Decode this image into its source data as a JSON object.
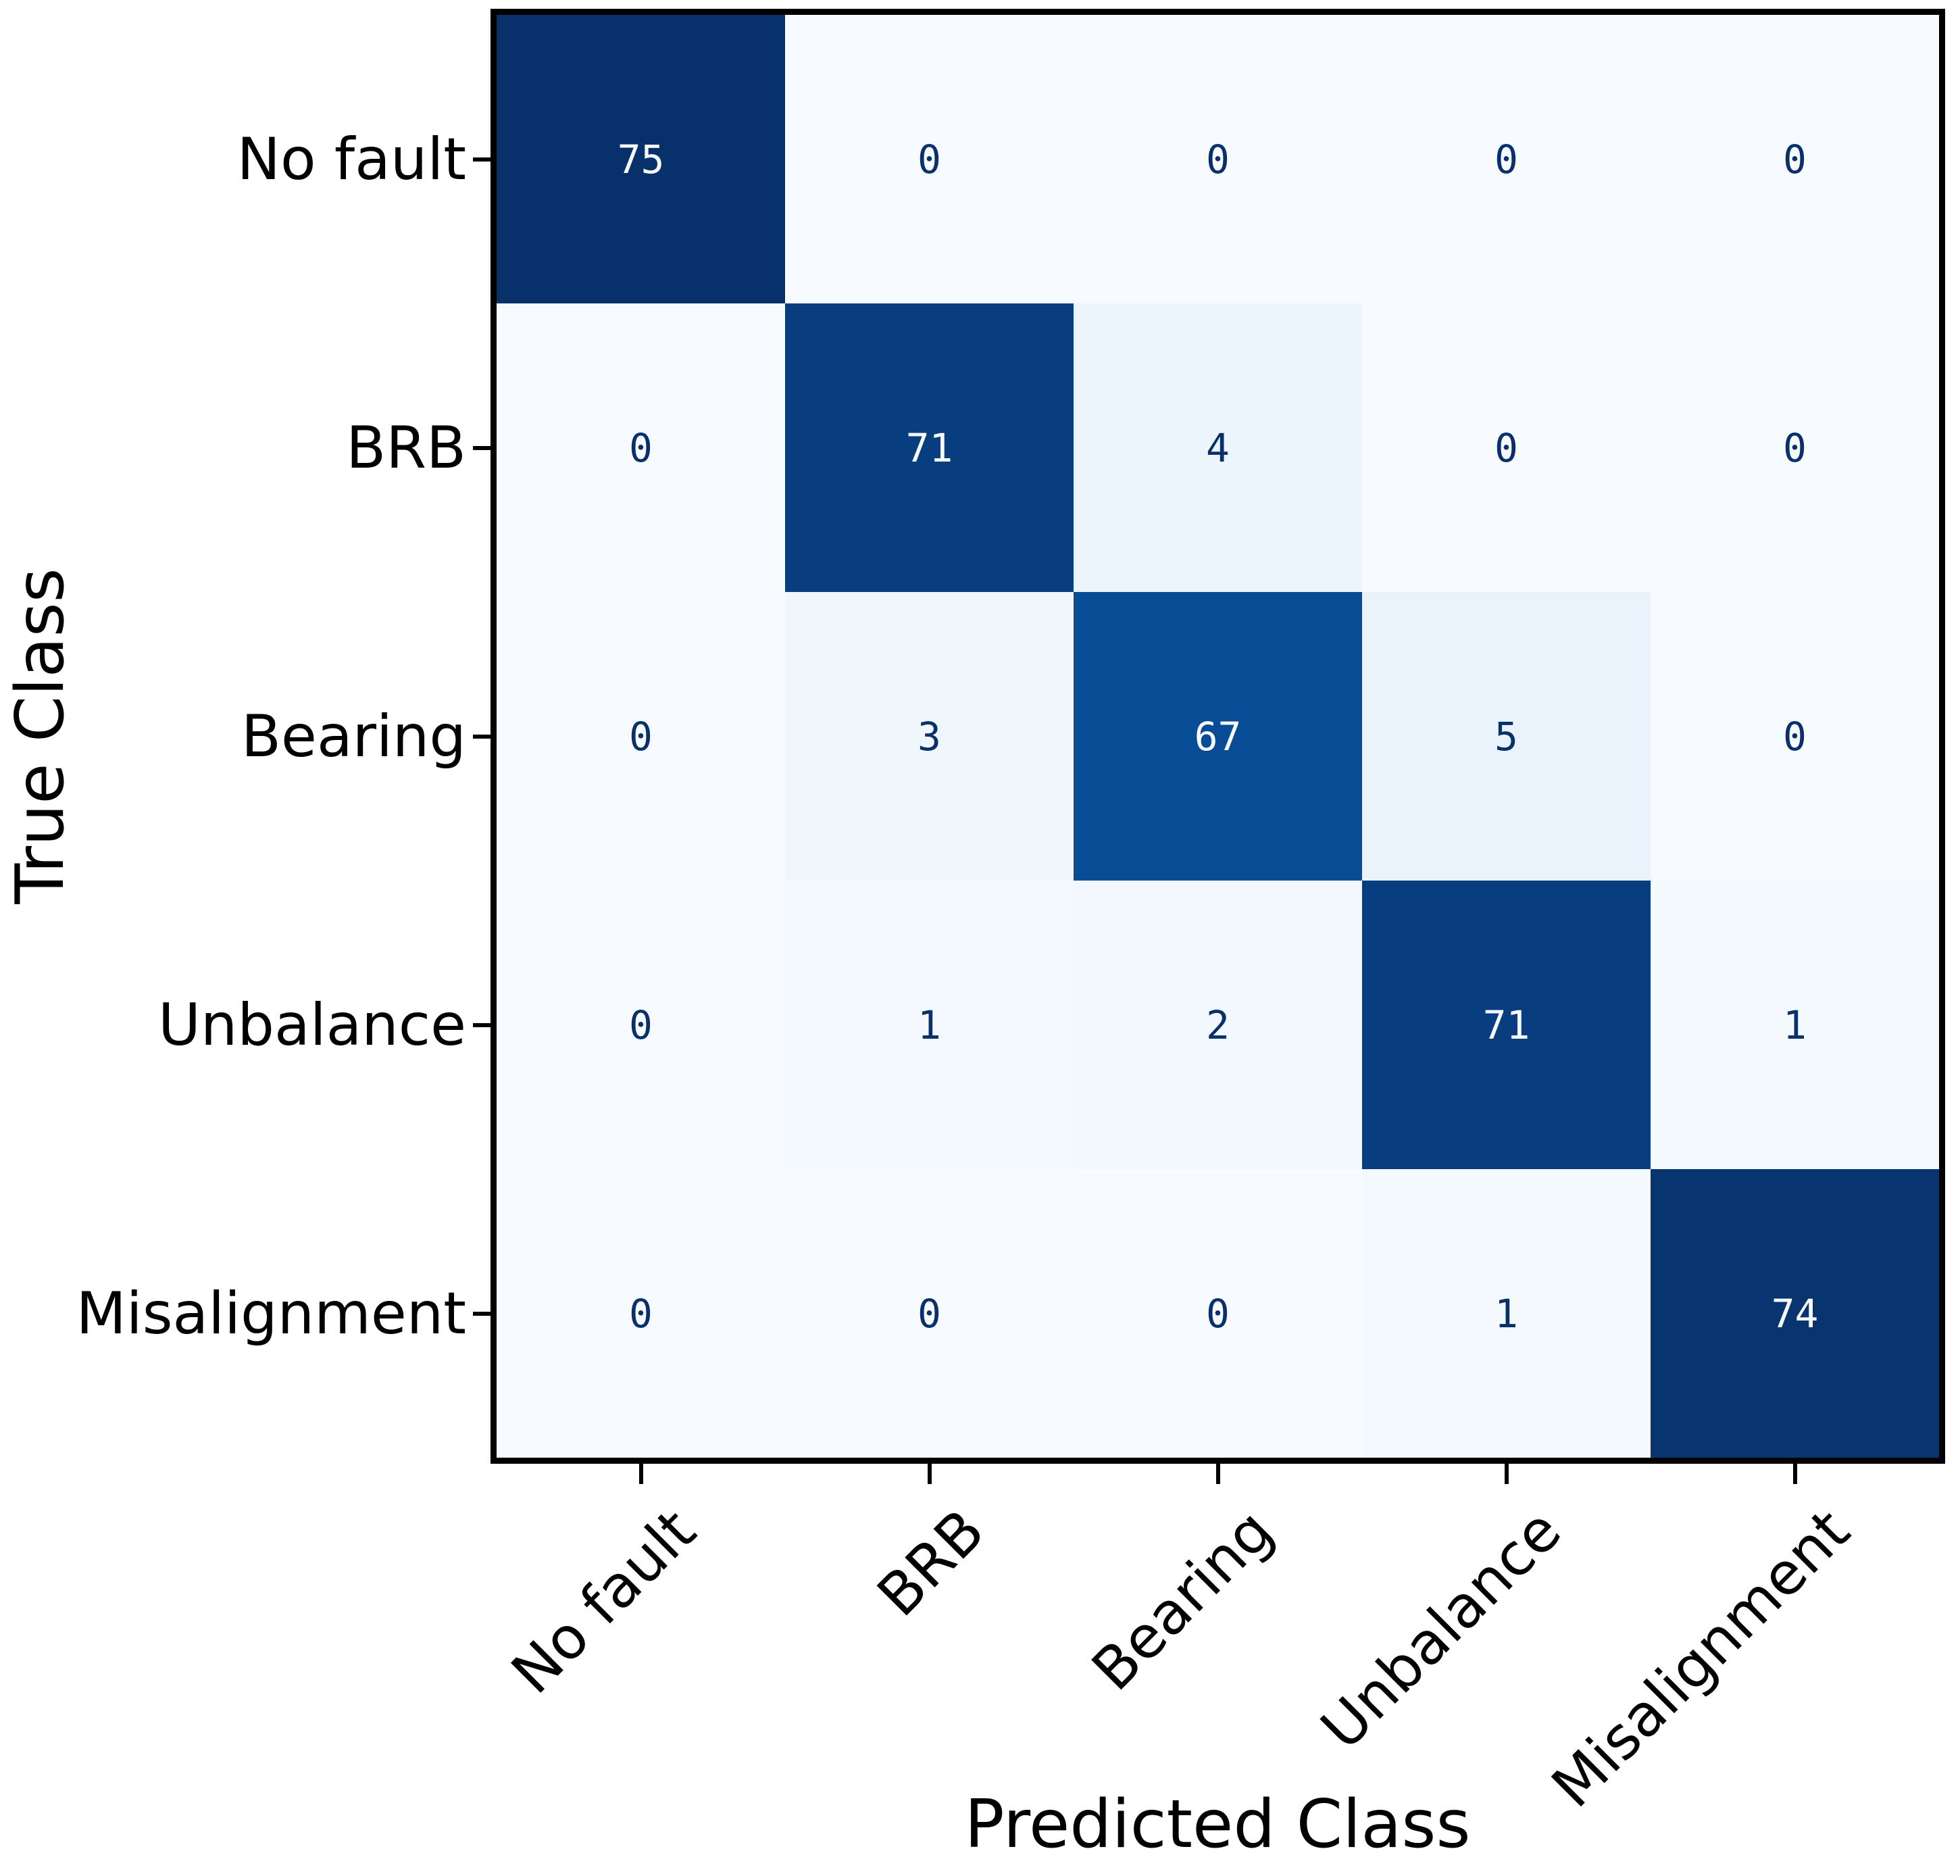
{
  "chart_data": {
    "type": "heatmap",
    "title": "",
    "xlabel": "Predicted Class",
    "ylabel": "True Class",
    "categories": [
      "No fault",
      "BRB",
      "Bearing",
      "Unbalance",
      "Misalignment"
    ],
    "matrix": [
      [
        75,
        0,
        0,
        0,
        0
      ],
      [
        0,
        71,
        4,
        0,
        0
      ],
      [
        0,
        3,
        67,
        5,
        0
      ],
      [
        0,
        1,
        2,
        71,
        1
      ],
      [
        0,
        0,
        0,
        1,
        74
      ]
    ],
    "vmin": 0,
    "vmax": 75,
    "colormap": "Blues",
    "colors": {
      "dark_text": "#08306b",
      "light_text": "#f7fbff",
      "spine": "#000000",
      "min_cell": "#f7fbff",
      "max_cell": "#08306b"
    },
    "legend": "none",
    "grid": "off"
  }
}
